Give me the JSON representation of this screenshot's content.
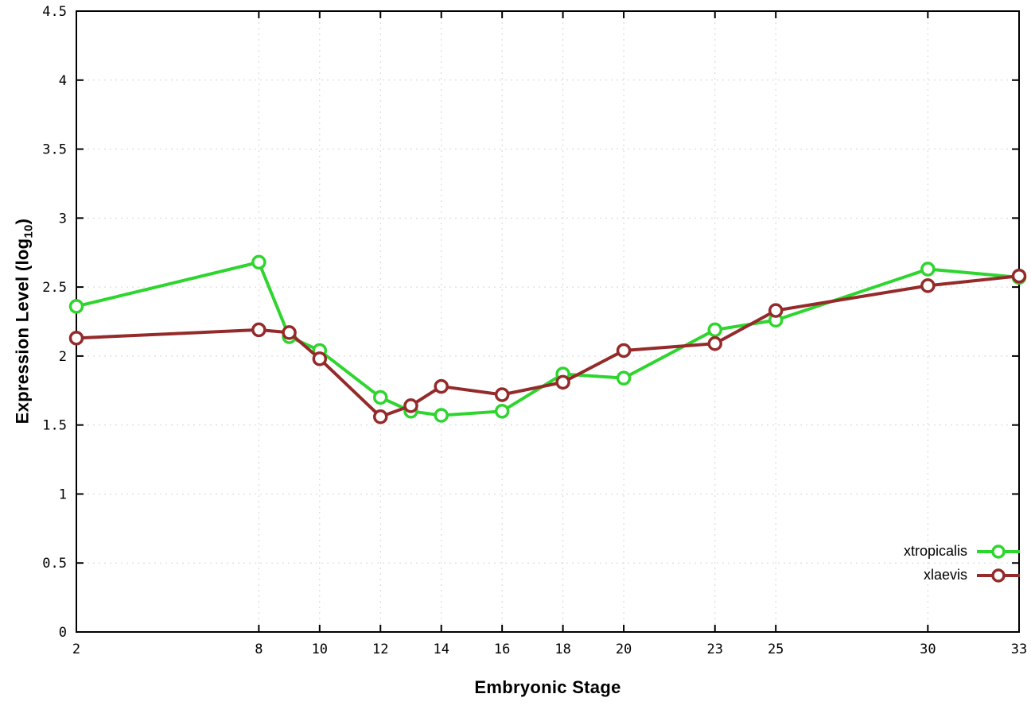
{
  "chart_data": {
    "type": "line",
    "title": "",
    "xlabel": "Embryonic Stage",
    "ylabel_prefix": "Expression Level (log",
    "ylabel_sub": "10",
    "ylabel_suffix": ")",
    "x": [
      2,
      8,
      9,
      10,
      12,
      13,
      14,
      16,
      18,
      20,
      23,
      25,
      30,
      33
    ],
    "series": [
      {
        "name": "xtropicalis",
        "color": "#2ed52e",
        "values": [
          2.36,
          2.68,
          2.14,
          2.04,
          1.7,
          1.6,
          1.57,
          1.6,
          1.87,
          1.84,
          2.19,
          2.26,
          2.63,
          2.57
        ]
      },
      {
        "name": "xlaevis",
        "color": "#942a2a",
        "values": [
          2.13,
          2.19,
          2.17,
          1.98,
          1.56,
          1.64,
          1.78,
          1.72,
          1.81,
          2.04,
          2.09,
          2.33,
          2.51,
          2.58
        ]
      }
    ],
    "xlim": [
      2,
      33
    ],
    "ylim": [
      0,
      4.5
    ],
    "xticks": [
      2,
      8,
      10,
      12,
      14,
      16,
      18,
      20,
      23,
      25,
      30,
      33
    ],
    "yticks": [
      0,
      0.5,
      1,
      1.5,
      2,
      2.5,
      3,
      3.5,
      4,
      4.5
    ],
    "grid": true,
    "grid_color": "#d4d4d4",
    "axis_color": "#000000",
    "background_color": "#ffffff",
    "legend_position": "bottom-right",
    "marker": "open-circle"
  }
}
